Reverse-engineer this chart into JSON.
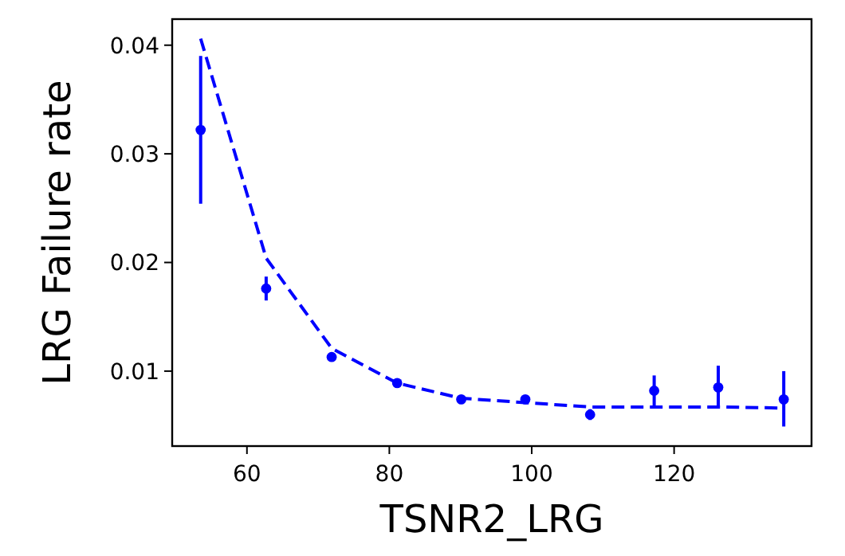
{
  "chart_data": {
    "type": "scatter",
    "xlabel": "TSNR2_LRG",
    "ylabel": "LRG Failure rate",
    "xlim": [
      49.5,
      139.3
    ],
    "ylim": [
      0.0031,
      0.0424
    ],
    "xticks": [
      60,
      80,
      100,
      120
    ],
    "yticks": [
      0.01,
      0.02,
      0.03,
      0.04
    ],
    "grid": false,
    "series": [
      {
        "color": "#0000ff",
        "marker": "circle",
        "x": [
          53.5,
          62.7,
          71.9,
          81.1,
          90.1,
          99.1,
          108.2,
          117.2,
          126.2,
          135.4
        ],
        "values": [
          0.0322,
          0.0176,
          0.0113,
          0.0089,
          0.0074,
          0.0074,
          0.006,
          0.0082,
          0.0085,
          0.0074
        ],
        "errors": [
          [
            0.0254,
            0.039
          ],
          [
            0.0165,
            0.0187
          ],
          [
            0.011,
            0.0116
          ],
          [
            0.0087,
            0.0091
          ],
          [
            0.0072,
            0.0076
          ],
          [
            0.0071,
            0.0077
          ],
          [
            0.0055,
            0.0065
          ],
          [
            0.0067,
            0.0096
          ],
          [
            0.0066,
            0.0105
          ],
          [
            0.0049,
            0.01
          ]
        ]
      },
      {
        "type": "line",
        "color": "#0000ff",
        "line_style": "dashed",
        "marker": "none",
        "x": [
          53.5,
          62.7,
          71.9,
          81.1,
          90.1,
          99.1,
          108.2,
          117.2,
          126.2,
          135.4
        ],
        "values": [
          0.0406,
          0.0204,
          0.0121,
          0.0089,
          0.0075,
          0.0071,
          0.0067,
          0.0067,
          0.0067,
          0.0066
        ]
      }
    ]
  }
}
